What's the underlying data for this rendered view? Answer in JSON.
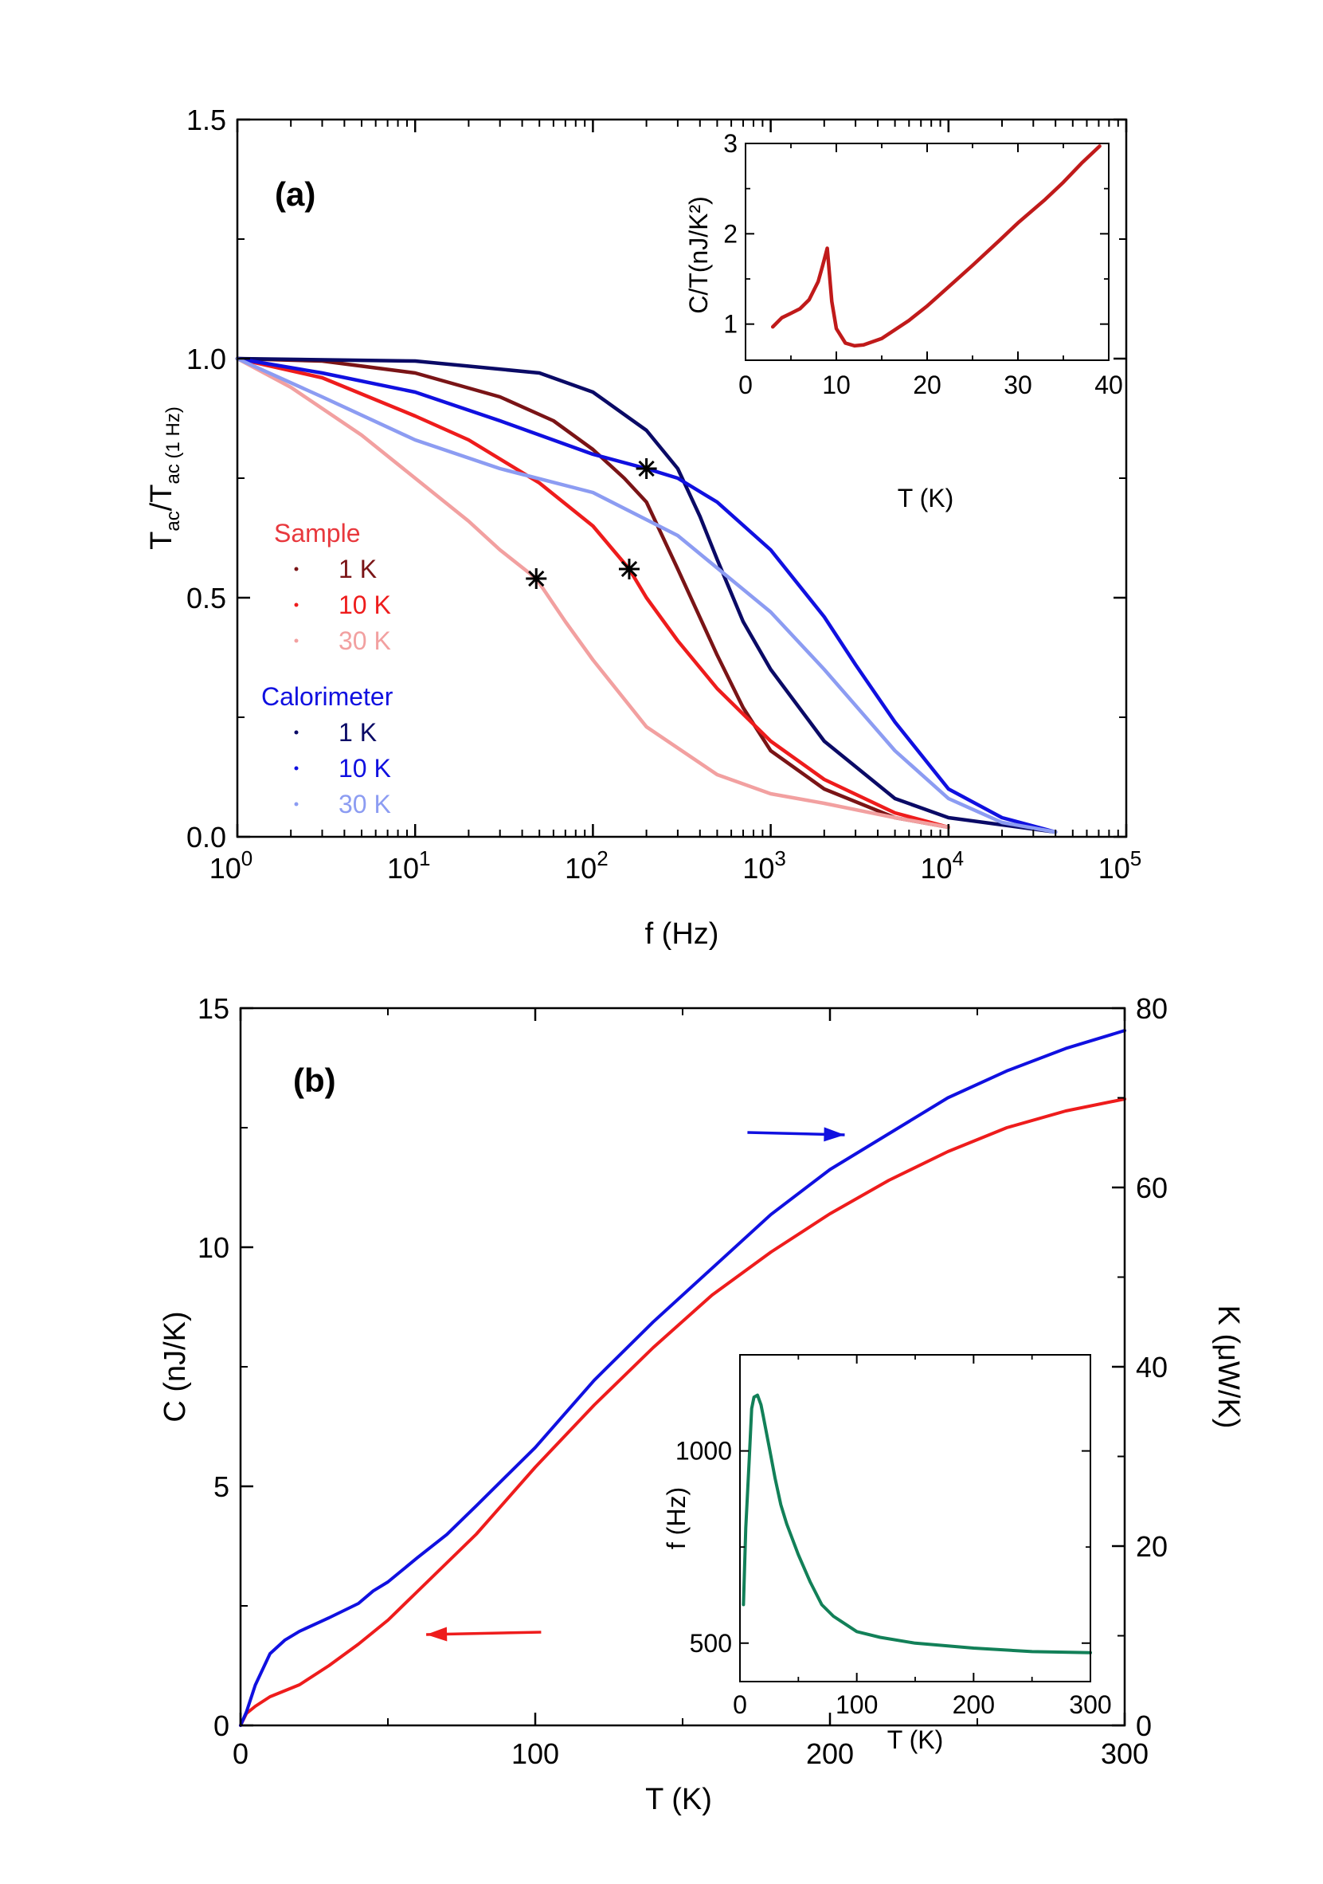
{
  "chart_data": [
    {
      "panel": "(a)",
      "type": "line",
      "xlabel": "f (Hz)",
      "ylabel": {
        "main": "T",
        "sub1": "ac",
        "mid": "/T",
        "sub2": "ac (1 Hz)"
      },
      "xscale": "log",
      "xlim": [
        1,
        100000
      ],
      "ylim": [
        0,
        1.5
      ],
      "xticks": [
        {
          "v": 1,
          "base": "10",
          "exp": "0"
        },
        {
          "v": 10,
          "base": "10",
          "exp": "1"
        },
        {
          "v": 100,
          "base": "10",
          "exp": "2"
        },
        {
          "v": 1000,
          "base": "10",
          "exp": "3"
        },
        {
          "v": 10000,
          "base": "10",
          "exp": "4"
        },
        {
          "v": 100000,
          "base": "10",
          "exp": "5"
        }
      ],
      "yticks": [
        "0.0",
        "0.5",
        "1.0",
        "1.5"
      ],
      "legend": {
        "groups": [
          {
            "title": "Sample",
            "color": "#e8383d",
            "entries": [
              {
                "label": "1 K",
                "color": "#7a1416"
              },
              {
                "label": "10 K",
                "color": "#ee1c1c"
              },
              {
                "label": "30 K",
                "color": "#f2a0a0"
              }
            ]
          },
          {
            "title": "Calorimeter",
            "color": "#1010e0",
            "entries": [
              {
                "label": "1 K",
                "color": "#0a0a66"
              },
              {
                "label": "10 K",
                "color": "#1010e0"
              },
              {
                "label": "30 K",
                "color": "#8c9cf2"
              }
            ]
          }
        ]
      },
      "series": [
        {
          "group": "Sample",
          "name": "1 K",
          "color": "#7a1416",
          "x": [
            1,
            3,
            10,
            30,
            60,
            100,
            150,
            200,
            300,
            500,
            700,
            1000,
            2000,
            5000,
            10000
          ],
          "y": [
            1.0,
            0.995,
            0.97,
            0.92,
            0.87,
            0.81,
            0.75,
            0.7,
            0.56,
            0.38,
            0.27,
            0.18,
            0.1,
            0.04,
            0.02
          ]
        },
        {
          "group": "Sample",
          "name": "10 K",
          "color": "#ee1c1c",
          "x": [
            1,
            3,
            10,
            20,
            50,
            100,
            160,
            200,
            300,
            500,
            1000,
            2000,
            5000,
            10000
          ],
          "y": [
            1.0,
            0.96,
            0.88,
            0.83,
            0.74,
            0.65,
            0.56,
            0.5,
            0.41,
            0.31,
            0.2,
            0.12,
            0.05,
            0.02
          ]
        },
        {
          "group": "Sample",
          "name": "30 K",
          "color": "#f2a0a0",
          "x": [
            1,
            2,
            5,
            10,
            20,
            30,
            48,
            70,
            100,
            200,
            500,
            1000,
            2000,
            5000,
            10000
          ],
          "y": [
            1.0,
            0.94,
            0.84,
            0.75,
            0.66,
            0.6,
            0.54,
            0.45,
            0.37,
            0.23,
            0.13,
            0.09,
            0.07,
            0.04,
            0.02
          ]
        },
        {
          "group": "Calorimeter",
          "name": "1 K",
          "color": "#0a0a66",
          "x": [
            1,
            10,
            50,
            100,
            200,
            300,
            400,
            500,
            700,
            1000,
            2000,
            5000,
            10000,
            40000
          ],
          "y": [
            1.0,
            0.995,
            0.97,
            0.93,
            0.85,
            0.77,
            0.67,
            0.58,
            0.45,
            0.35,
            0.2,
            0.08,
            0.04,
            0.01
          ]
        },
        {
          "group": "Calorimeter",
          "name": "10 K",
          "color": "#1010e0",
          "x": [
            1,
            3,
            10,
            30,
            100,
            200,
            300,
            500,
            1000,
            2000,
            3000,
            5000,
            10000,
            20000,
            40000
          ],
          "y": [
            1.0,
            0.97,
            0.93,
            0.87,
            0.8,
            0.77,
            0.75,
            0.7,
            0.6,
            0.46,
            0.36,
            0.24,
            0.1,
            0.04,
            0.01
          ]
        },
        {
          "group": "Calorimeter",
          "name": "30 K",
          "color": "#8c9cf2",
          "x": [
            1,
            3,
            10,
            30,
            100,
            300,
            1000,
            2000,
            5000,
            10000,
            20000,
            40000
          ],
          "y": [
            1.0,
            0.92,
            0.83,
            0.77,
            0.72,
            0.63,
            0.47,
            0.35,
            0.18,
            0.08,
            0.03,
            0.01
          ]
        }
      ],
      "markers": [
        {
          "x": 48,
          "y": 0.54,
          "symbol": "asterisk"
        },
        {
          "x": 160,
          "y": 0.56,
          "symbol": "asterisk"
        },
        {
          "x": 200,
          "y": 0.77,
          "symbol": "asterisk"
        }
      ],
      "inset": {
        "type": "line",
        "xlabel": "T (K)",
        "ylabel": "C/T(nJ/K²)",
        "xlim": [
          0,
          40
        ],
        "ylim": [
          0.6,
          3
        ],
        "xticks": [
          "0",
          "10",
          "20",
          "30",
          "40"
        ],
        "yticks": [
          "1",
          "2",
          "3"
        ],
        "series": [
          {
            "color": "#c01a1a",
            "x": [
              3,
              4,
              5,
              6,
              7,
              8,
              8.5,
              9,
              9.5,
              10,
              11,
              12,
              13,
              15,
              18,
              20,
              23,
              25,
              28,
              30,
              33,
              35,
              37,
              39
            ],
            "y": [
              0.97,
              1.07,
              1.12,
              1.17,
              1.27,
              1.47,
              1.65,
              1.84,
              1.25,
              0.95,
              0.79,
              0.76,
              0.77,
              0.84,
              1.04,
              1.2,
              1.47,
              1.65,
              1.93,
              2.12,
              2.38,
              2.57,
              2.78,
              2.97
            ]
          }
        ]
      }
    },
    {
      "panel": "(b)",
      "type": "line",
      "xlabel": "T (K)",
      "ylabel": "C (nJ/K)",
      "ylabel_right": "K (μW/K)",
      "xlim": [
        0,
        300
      ],
      "ylim": [
        0,
        15
      ],
      "ylim_right": [
        0,
        80
      ],
      "xticks": [
        "0",
        "100",
        "200",
        "300"
      ],
      "yticks": [
        "0",
        "5",
        "10",
        "15"
      ],
      "yticks_right": [
        "0",
        "20",
        "40",
        "60",
        "80"
      ],
      "series": [
        {
          "name": "C",
          "axis": "left",
          "color": "#ee1c1c",
          "x": [
            0,
            2,
            5,
            10,
            20,
            30,
            40,
            50,
            60,
            70,
            80,
            100,
            120,
            140,
            160,
            180,
            200,
            220,
            240,
            260,
            280,
            300
          ],
          "y": [
            0,
            0.25,
            0.4,
            0.6,
            0.85,
            1.25,
            1.7,
            2.2,
            2.8,
            3.4,
            4.0,
            5.4,
            6.7,
            7.9,
            9.0,
            9.9,
            10.7,
            11.4,
            12.0,
            12.5,
            12.85,
            13.1
          ]
        },
        {
          "name": "K",
          "axis": "right",
          "color": "#1010e0",
          "x": [
            0,
            2,
            5,
            10,
            15,
            20,
            30,
            40,
            45,
            50,
            60,
            70,
            80,
            100,
            120,
            140,
            160,
            180,
            200,
            220,
            240,
            260,
            280,
            300
          ],
          "y": [
            0,
            1.5,
            4.5,
            8,
            9.5,
            10.5,
            12,
            13.6,
            15,
            16,
            18.7,
            21.3,
            24.5,
            31,
            38.5,
            45,
            51,
            57,
            62,
            66,
            70,
            73,
            75.5,
            77.5
          ]
        }
      ],
      "arrows": [
        {
          "points_to": "right",
          "color": "#1010e0",
          "from": [
            172,
            12.4
          ],
          "to": [
            205,
            12.35
          ]
        },
        {
          "points_to": "left",
          "color": "#ee1c1c",
          "from": [
            102,
            1.95
          ],
          "to": [
            63,
            1.9
          ]
        }
      ],
      "inset": {
        "type": "line",
        "xlabel": "T (K)",
        "ylabel": "f (Hz)",
        "xlim": [
          0,
          300
        ],
        "ylim": [
          400,
          1250
        ],
        "xticks": [
          "0",
          "100",
          "200",
          "300"
        ],
        "yticks": [
          "500",
          "1000"
        ],
        "series": [
          {
            "color": "#128058",
            "x": [
              3,
              5,
              8,
              10,
              12,
              15,
              18,
              20,
              25,
              30,
              35,
              40,
              50,
              60,
              70,
              80,
              100,
              120,
              150,
              200,
              250,
              300
            ],
            "y": [
              600,
              800,
              980,
              1110,
              1140,
              1145,
              1120,
              1090,
              1010,
              930,
              860,
              810,
              730,
              660,
              600,
              570,
              530,
              515,
              500,
              487,
              478,
              475
            ]
          }
        ]
      }
    }
  ]
}
